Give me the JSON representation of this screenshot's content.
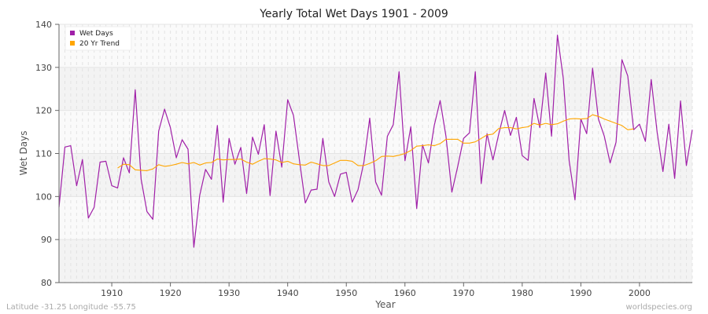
{
  "chart_data": {
    "type": "line",
    "title": "Yearly Total Wet Days 1901 - 2009",
    "xlabel": "Year",
    "ylabel": "Wet Days",
    "xlim": [
      1901,
      2009
    ],
    "ylim": [
      80,
      140
    ],
    "xticks": [
      1910,
      1920,
      1930,
      1940,
      1950,
      1960,
      1970,
      1980,
      1990,
      2000
    ],
    "yticks": [
      80,
      90,
      100,
      110,
      120,
      130,
      140
    ],
    "grid": true,
    "legend_position": "top-left",
    "series": [
      {
        "name": "Wet Days",
        "color": "#a020a8",
        "start_year": 1901,
        "values": [
          97.5,
          111.5,
          111.8,
          102.5,
          108.6,
          95,
          97.5,
          108,
          108.2,
          102.5,
          102,
          109,
          105.5,
          124.8,
          104,
          96.5,
          94.7,
          115.2,
          120.3,
          116,
          109,
          113.2,
          111,
          88.2,
          100.3,
          106.3,
          104,
          116.5,
          98.7,
          113.5,
          107.5,
          111.4,
          100.7,
          113.8,
          109.8,
          116.7,
          100.2,
          115.2,
          106.8,
          122.5,
          118.8,
          108.5,
          98.5,
          101.5,
          101.7,
          113.5,
          103.4,
          100,
          105.2,
          105.6,
          98.7,
          101.6,
          108,
          118.2,
          103.4,
          100.3,
          114,
          116.7,
          129,
          108.3,
          116.2,
          97.2,
          112,
          107.8,
          116.5,
          122.3,
          114,
          101,
          107,
          113.5,
          114.8,
          129,
          103,
          114.6,
          108.5,
          114.5,
          120,
          114.2,
          118.4,
          109.5,
          108.4,
          122.8,
          116,
          128.7,
          114,
          137.5,
          127.5,
          108.3,
          99.2,
          118,
          114.6,
          129.8,
          118,
          114,
          107.8,
          112.6,
          131.8,
          128,
          115.5,
          116.8,
          112.8,
          127.2,
          115,
          105.8,
          116.8,
          104.2,
          122.2,
          107.2,
          115.5
        ]
      },
      {
        "name": "20 Yr Trend",
        "color": "#ffa500",
        "start_year": 1911,
        "values": [
          106.6,
          107.5,
          107.4,
          106.2,
          106.1,
          106,
          106.4,
          107.4,
          107,
          107.2,
          107.5,
          107.9,
          107.6,
          107.9,
          107.3,
          107.8,
          107.9,
          108.7,
          108.5,
          108.6,
          108.6,
          108.7,
          108,
          107.5,
          108.2,
          108.8,
          108.7,
          108.5,
          107.9,
          108.2,
          107.6,
          107.4,
          107.3,
          108,
          107.6,
          107.2,
          107.2,
          107.8,
          108.4,
          108.4,
          108.2,
          107.2,
          107.2,
          107.7,
          108.3,
          109.3,
          109.4,
          109.3,
          109.6,
          110,
          110.7,
          111.7,
          111.8,
          112,
          111.8,
          112.3,
          113.3,
          113.3,
          113.3,
          112.4,
          112.4,
          112.7,
          113.5,
          114.3,
          114.5,
          115.8,
          116,
          116,
          115.7,
          116,
          116.2,
          117,
          116.6,
          117,
          116.7,
          116.9,
          117.5,
          118,
          118.1,
          118,
          118.1,
          119,
          118.6,
          118,
          117.5,
          117,
          116.5,
          115.5,
          115.7
        ]
      }
    ]
  },
  "footer": {
    "location": "Latitude -31.25 Longitude -55.75",
    "source": "worldspecies.org"
  }
}
